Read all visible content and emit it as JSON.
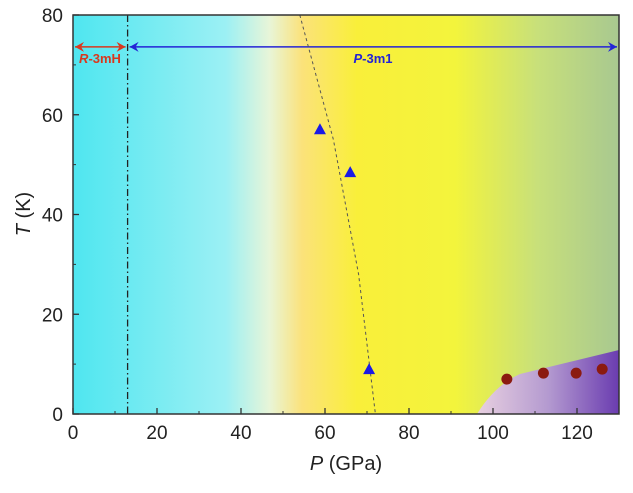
{
  "chart_data": {
    "type": "scatter",
    "xlabel": {
      "italic": "P",
      "rest": " (GPa)"
    },
    "ylabel": {
      "italic": "T",
      "rest": " (K)"
    },
    "xlim": [
      0,
      130
    ],
    "ylim": [
      0,
      80
    ],
    "xticks": [
      "0",
      "20",
      "40",
      "60",
      "80",
      "100",
      "120"
    ],
    "yticks": [
      "0",
      "20",
      "40",
      "60",
      "80"
    ],
    "grid": false,
    "phases": [
      {
        "label_italic": "R",
        "label_rest": "-3mH",
        "range": [
          0,
          13
        ],
        "color": "#d9381e"
      },
      {
        "label_italic": "P",
        "label_rest": "-3m1",
        "range": [
          13,
          130
        ],
        "color": "#2424d6"
      }
    ],
    "phase_boundary_P": 13,
    "series": [
      {
        "marker": "triangle",
        "color": "#1a1ae6",
        "x": [
          58.8,
          66,
          70.5
        ],
        "y": [
          57.1,
          48.5,
          9
        ]
      },
      {
        "marker": "circle",
        "color": "#8b1a10",
        "x": [
          103.3,
          112,
          119.8,
          126
        ],
        "y": [
          7,
          8.2,
          8.2,
          9
        ]
      }
    ],
    "dashed_curve": {
      "x": [
        54,
        62,
        68,
        72
      ],
      "y": [
        80,
        55,
        28,
        0
      ]
    },
    "region_colors": {
      "low": "#4fe6f0",
      "mid": "#f8f03a",
      "high": "#a8cc90",
      "sc": "#7a4fb8"
    }
  }
}
